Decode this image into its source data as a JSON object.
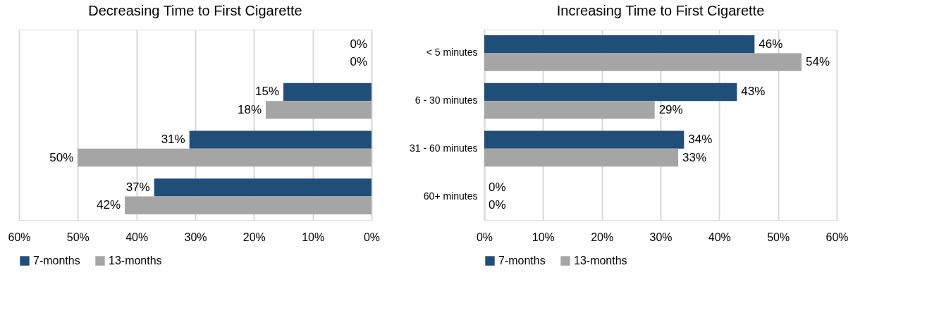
{
  "chart_data": [
    {
      "type": "bar",
      "title": "Decreasing Time to First Cigarette",
      "orientation": "horizontal",
      "categories": [
        null,
        null,
        null,
        null
      ],
      "series": [
        {
          "name": "7-months",
          "color": "#1f4e79",
          "values": [
            0,
            15,
            31,
            37
          ],
          "value_labels": [
            "0%",
            "15%",
            "31%",
            "37%"
          ]
        },
        {
          "name": "13-months",
          "color": "#a5a5a5",
          "values": [
            0,
            18,
            50,
            42
          ],
          "value_labels": [
            "0%",
            "18%",
            "50%",
            "42%"
          ]
        }
      ],
      "xlim": [
        60,
        0
      ],
      "xticks": [
        {
          "value": 60,
          "label": "60%"
        },
        {
          "value": 50,
          "label": "50%"
        },
        {
          "value": 40,
          "label": "40%"
        },
        {
          "value": 30,
          "label": "30%"
        },
        {
          "value": 20,
          "label": "20%"
        },
        {
          "value": 10,
          "label": "10%"
        },
        {
          "value": 0,
          "label": "0%"
        }
      ],
      "grid": "x",
      "legend": "bottom",
      "tick_labels": "x"
    },
    {
      "type": "bar",
      "title": "Increasing Time to First Cigarette",
      "orientation": "horizontal",
      "categories": [
        "< 5 minutes",
        "6 - 30 minutes",
        "31 - 60 minutes",
        "60+ minutes"
      ],
      "series": [
        {
          "name": "7-months",
          "color": "#1f4e79",
          "values": [
            46,
            43,
            34,
            0
          ],
          "value_labels": [
            "46%",
            "43%",
            "34%",
            "0%"
          ]
        },
        {
          "name": "13-months",
          "color": "#a5a5a5",
          "values": [
            54,
            29,
            33,
            0
          ],
          "value_labels": [
            "54%",
            "29%",
            "33%",
            "0%"
          ]
        }
      ],
      "xlim": [
        0,
        60
      ],
      "xticks": [
        {
          "value": 0,
          "label": "0%"
        },
        {
          "value": 10,
          "label": "10%"
        },
        {
          "value": 20,
          "label": "20%"
        },
        {
          "value": 30,
          "label": "30%"
        },
        {
          "value": 40,
          "label": "40%"
        },
        {
          "value": 50,
          "label": "50%"
        },
        {
          "value": 60,
          "label": "60%"
        }
      ],
      "grid": "x",
      "legend": "bottom"
    }
  ]
}
